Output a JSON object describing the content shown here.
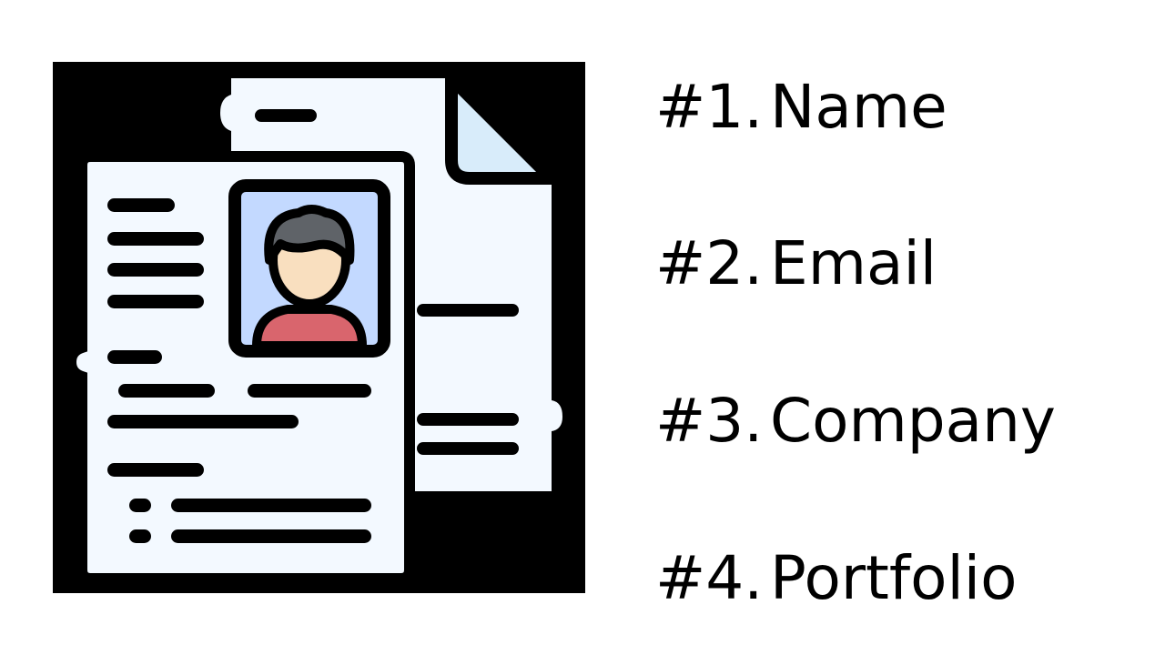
{
  "illustration": {
    "icon": "resume-document-icon",
    "colors": {
      "background": "#000000",
      "paper": "#f3f9ff",
      "paper_fold": "#d8ecfa",
      "photo_background": "#c3d9ff",
      "hair": "#5f6368",
      "skin": "#f9dfbf",
      "shirt": "#d9656d",
      "outline": "#000000"
    }
  },
  "fields": [
    {
      "number": "#1.",
      "label": "Name"
    },
    {
      "number": "#2.",
      "label": "Email"
    },
    {
      "number": "#3.",
      "label": "Company"
    },
    {
      "number": "#4.",
      "label": "Portfolio"
    }
  ]
}
